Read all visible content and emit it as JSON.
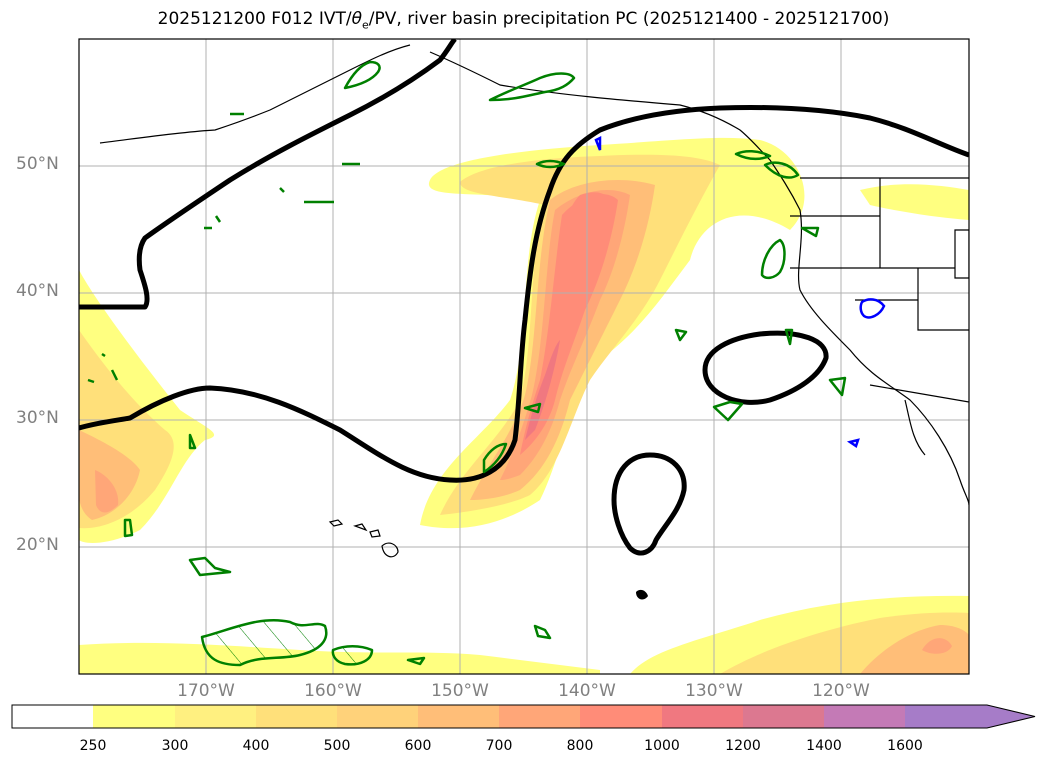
{
  "title": {
    "prefix": "2025121200 F012 IVT/",
    "theta": "θ",
    "sub": "e",
    "suffix": "/PV, river basin precipitation PC (2025121400 - 2025121700)"
  },
  "map": {
    "lat_labels": [
      "50°N",
      "40°N",
      "30°N",
      "20°N"
    ],
    "lon_labels": [
      "170°W",
      "160°W",
      "150°W",
      "140°W",
      "130°W",
      "120°W"
    ],
    "lon_range": [
      -180,
      -110
    ],
    "lat_range": [
      10,
      60
    ],
    "contour_colors": {
      "theta_e": "#000000",
      "pv": "#008000",
      "precip": "#0000ff"
    }
  },
  "colorbar": {
    "levels": [
      "250",
      "300",
      "400",
      "500",
      "600",
      "700",
      "800",
      "1000",
      "1200",
      "1400",
      "1600"
    ],
    "colors": [
      "#ffff80",
      "#fff080",
      "#ffe07a",
      "#ffd27a",
      "#ffbe78",
      "#ffa678",
      "#ff8c78",
      "#f07880",
      "#dc7890",
      "#c47ab6",
      "#a67cc8",
      "#a67cc8"
    ],
    "extend": "max"
  }
}
